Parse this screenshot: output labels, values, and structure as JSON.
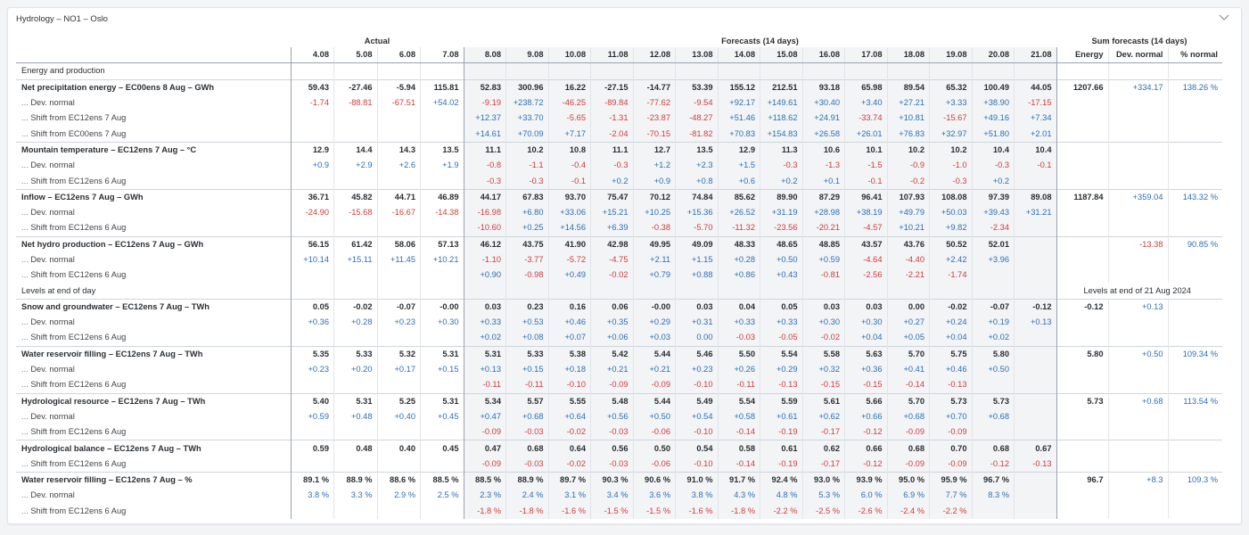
{
  "panel": {
    "title": "Hydrology – NO1 – Oslo"
  },
  "groups": {
    "actual": "Actual",
    "forecast": "Forecasts (14 days)",
    "sum": "Sum forecasts (14 days)"
  },
  "dates": [
    "4.08",
    "5.08",
    "6.08",
    "7.08",
    "8.08",
    "9.08",
    "10.08",
    "11.08",
    "12.08",
    "13.08",
    "14.08",
    "15.08",
    "16.08",
    "17.08",
    "18.08",
    "19.08",
    "20.08",
    "21.08"
  ],
  "sum_headers": [
    "Energy",
    "Dev. normal",
    "% normal"
  ],
  "levels_caption": "Levels at end of 21 Aug 2024",
  "rows": [
    {
      "type": "section",
      "label": "Energy and production"
    },
    {
      "type": "main",
      "label": "Net precipitation energy – EC00ens 8 Aug – GWh",
      "values": [
        "59.43",
        "-27.46",
        "-5.94",
        "115.81",
        "52.83",
        "300.96",
        "16.22",
        "-27.15",
        "-14.77",
        "53.39",
        "155.12",
        "212.51",
        "93.18",
        "65.98",
        "89.54",
        "65.32",
        "100.49",
        "44.05"
      ],
      "sums": [
        "1207.66",
        "+334.17",
        "138.26 %"
      ]
    },
    {
      "type": "sub",
      "label": "Dev. normal",
      "values": [
        "-1.74",
        "-88.81",
        "-67.51",
        "+54.02",
        "-9.19",
        "+238.72",
        "-46.25",
        "-89.84",
        "-77.62",
        "-9.54",
        "+92.17",
        "+149.61",
        "+30.40",
        "+3.40",
        "+27.21",
        "+3.33",
        "+38.90",
        "-17.15"
      ],
      "sums": [
        "",
        "",
        ""
      ]
    },
    {
      "type": "sub",
      "label": "Shift from EC12ens 7 Aug",
      "values": [
        "",
        "",
        "",
        "",
        "+12.37",
        "+33.70",
        "-5.65",
        "-1.31",
        "-23.87",
        "-48.27",
        "+51.46",
        "+118.62",
        "+24.91",
        "-33.74",
        "+10.81",
        "-15.67",
        "+49.16",
        "+7.34"
      ],
      "sums": [
        "",
        "",
        ""
      ]
    },
    {
      "type": "sub",
      "label": "Shift from EC00ens 7 Aug",
      "values": [
        "",
        "",
        "",
        "",
        "+14.61",
        "+70.09",
        "+7.17",
        "-2.04",
        "-70.15",
        "-81.82",
        "+70.83",
        "+154.83",
        "+26.58",
        "+26.01",
        "+76.83",
        "+32.97",
        "+51.80",
        "+2.01"
      ],
      "sums": [
        "",
        "",
        ""
      ]
    },
    {
      "type": "main",
      "label": "Mountain temperature – EC12ens 7 Aug – °C",
      "values": [
        "12.9",
        "14.4",
        "14.3",
        "13.5",
        "11.1",
        "10.2",
        "10.8",
        "11.1",
        "12.7",
        "13.5",
        "12.9",
        "11.3",
        "10.6",
        "10.1",
        "10.2",
        "10.2",
        "10.4",
        "10.4"
      ],
      "sums": [
        "",
        "",
        ""
      ]
    },
    {
      "type": "sub",
      "label": "Dev. normal",
      "values": [
        "+0.9",
        "+2.9",
        "+2.6",
        "+1.9",
        "-0.8",
        "-1.1",
        "-0.4",
        "-0.3",
        "+1.2",
        "+2.3",
        "+1.5",
        "-0.3",
        "-1.3",
        "-1.5",
        "-0.9",
        "-1.0",
        "-0.3",
        "-0.1"
      ],
      "sums": [
        "",
        "",
        ""
      ]
    },
    {
      "type": "sub",
      "label": "Shift from EC12ens 6 Aug",
      "values": [
        "",
        "",
        "",
        "",
        "-0.3",
        "-0.3",
        "-0.1",
        "+0.2",
        "+0.9",
        "+0.8",
        "+0.6",
        "+0.2",
        "+0.1",
        "-0.1",
        "-0.2",
        "-0.3",
        "+0.2",
        ""
      ],
      "sums": [
        "",
        "",
        ""
      ]
    },
    {
      "type": "main",
      "label": "Inflow – EC12ens 7 Aug – GWh",
      "values": [
        "36.71",
        "45.82",
        "44.71",
        "46.89",
        "44.17",
        "67.83",
        "93.70",
        "75.47",
        "70.12",
        "74.84",
        "85.62",
        "89.90",
        "87.29",
        "96.41",
        "107.93",
        "108.08",
        "97.39",
        "89.08"
      ],
      "sums": [
        "1187.84",
        "+359.04",
        "143.32 %"
      ]
    },
    {
      "type": "sub",
      "label": "Dev. normal",
      "values": [
        "-24.90",
        "-15.68",
        "-16.67",
        "-14.38",
        "-16.98",
        "+6.80",
        "+33.06",
        "+15.21",
        "+10.25",
        "+15.36",
        "+26.52",
        "+31.19",
        "+28.98",
        "+38.19",
        "+49.79",
        "+50.03",
        "+39.43",
        "+31.21"
      ],
      "sums": [
        "",
        "",
        ""
      ]
    },
    {
      "type": "sub",
      "label": "Shift from EC12ens 6 Aug",
      "values": [
        "",
        "",
        "",
        "",
        "-10.60",
        "+0.25",
        "+14.56",
        "+6.39",
        "-0.38",
        "-5.70",
        "-11.32",
        "-23.56",
        "-20.21",
        "-4.57",
        "+10.21",
        "+9.82",
        "-2.34",
        ""
      ],
      "sums": [
        "",
        "",
        ""
      ]
    },
    {
      "type": "main",
      "label": "Net hydro production – EC12ens 7 Aug – GWh",
      "values": [
        "56.15",
        "61.42",
        "58.06",
        "57.13",
        "46.12",
        "43.75",
        "41.90",
        "42.98",
        "49.95",
        "49.09",
        "48.33",
        "48.65",
        "48.85",
        "43.57",
        "43.76",
        "50.52",
        "52.01",
        ""
      ],
      "sums": [
        "",
        "-13.38",
        "90.85 %"
      ]
    },
    {
      "type": "sub",
      "label": "Dev. normal",
      "values": [
        "+10.14",
        "+15.11",
        "+11.45",
        "+10.21",
        "-1.10",
        "-3.77",
        "-5.72",
        "-4.75",
        "+2.11",
        "+1.15",
        "+0.28",
        "+0.50",
        "+0.59",
        "-4.64",
        "-4.40",
        "+2.42",
        "+3.96",
        ""
      ],
      "sums": [
        "",
        "",
        ""
      ]
    },
    {
      "type": "sub",
      "label": "Shift from EC12ens 6 Aug",
      "values": [
        "",
        "",
        "",
        "",
        "+0.90",
        "-0.98",
        "+0.49",
        "-0.02",
        "+0.79",
        "+0.88",
        "+0.86",
        "+0.43",
        "-0.81",
        "-2.56",
        "-2.21",
        "-1.74",
        "",
        ""
      ],
      "sums": [
        "",
        "",
        ""
      ]
    },
    {
      "type": "section",
      "label": "Levels at end of day",
      "levels": true
    },
    {
      "type": "main",
      "label": "Snow and groundwater – EC12ens 7 Aug – TWh",
      "values": [
        "0.05",
        "-0.02",
        "-0.07",
        "-0.00",
        "0.03",
        "0.23",
        "0.16",
        "0.06",
        "-0.00",
        "0.03",
        "0.04",
        "0.05",
        "0.03",
        "0.03",
        "0.00",
        "-0.02",
        "-0.07",
        "-0.12"
      ],
      "sums": [
        "-0.12",
        "+0.13",
        ""
      ]
    },
    {
      "type": "sub",
      "label": "Dev. normal",
      "values": [
        "+0.36",
        "+0.28",
        "+0.23",
        "+0.30",
        "+0.33",
        "+0.53",
        "+0.46",
        "+0.35",
        "+0.29",
        "+0.31",
        "+0.33",
        "+0.33",
        "+0.30",
        "+0.30",
        "+0.27",
        "+0.24",
        "+0.19",
        "+0.13"
      ],
      "sums": [
        "",
        "",
        ""
      ]
    },
    {
      "type": "sub",
      "label": "Shift from EC12ens 6 Aug",
      "values": [
        "",
        "",
        "",
        "",
        "+0.02",
        "+0.08",
        "+0.07",
        "+0.06",
        "+0.03",
        "0.00",
        "-0.03",
        "-0.05",
        "-0.02",
        "+0.04",
        "+0.05",
        "+0.04",
        "+0.02",
        ""
      ],
      "sums": [
        "",
        "",
        ""
      ]
    },
    {
      "type": "main",
      "label": "Water reservoir filling – EC12ens 7 Aug – TWh",
      "values": [
        "5.35",
        "5.33",
        "5.32",
        "5.31",
        "5.31",
        "5.33",
        "5.38",
        "5.42",
        "5.44",
        "5.46",
        "5.50",
        "5.54",
        "5.58",
        "5.63",
        "5.70",
        "5.75",
        "5.80",
        ""
      ],
      "sums": [
        "5.80",
        "+0.50",
        "109.34 %"
      ]
    },
    {
      "type": "sub",
      "label": "Dev. normal",
      "values": [
        "+0.23",
        "+0.20",
        "+0.17",
        "+0.15",
        "+0.13",
        "+0.15",
        "+0.18",
        "+0.21",
        "+0.21",
        "+0.23",
        "+0.26",
        "+0.29",
        "+0.32",
        "+0.36",
        "+0.41",
        "+0.46",
        "+0.50",
        ""
      ],
      "sums": [
        "",
        "",
        ""
      ]
    },
    {
      "type": "sub",
      "label": "Shift from EC12ens 6 Aug",
      "values": [
        "",
        "",
        "",
        "",
        "-0.11",
        "-0.11",
        "-0.10",
        "-0.09",
        "-0.09",
        "-0.10",
        "-0.11",
        "-0.13",
        "-0.15",
        "-0.15",
        "-0.14",
        "-0.13",
        "",
        ""
      ],
      "sums": [
        "",
        "",
        ""
      ]
    },
    {
      "type": "main",
      "label": "Hydrological resource – EC12ens 7 Aug – TWh",
      "values": [
        "5.40",
        "5.31",
        "5.25",
        "5.31",
        "5.34",
        "5.57",
        "5.55",
        "5.48",
        "5.44",
        "5.49",
        "5.54",
        "5.59",
        "5.61",
        "5.66",
        "5.70",
        "5.73",
        "5.73",
        ""
      ],
      "sums": [
        "5.73",
        "+0.68",
        "113.54 %"
      ]
    },
    {
      "type": "sub",
      "label": "Dev. normal",
      "values": [
        "+0.59",
        "+0.48",
        "+0.40",
        "+0.45",
        "+0.47",
        "+0.68",
        "+0.64",
        "+0.56",
        "+0.50",
        "+0.54",
        "+0.58",
        "+0.61",
        "+0.62",
        "+0.66",
        "+0.68",
        "+0.70",
        "+0.68",
        ""
      ],
      "sums": [
        "",
        "",
        ""
      ]
    },
    {
      "type": "sub",
      "label": "Shift from EC12ens 6 Aug",
      "values": [
        "",
        "",
        "",
        "",
        "-0.09",
        "-0.03",
        "-0.02",
        "-0.03",
        "-0.06",
        "-0.10",
        "-0.14",
        "-0.19",
        "-0.17",
        "-0.12",
        "-0.09",
        "-0.09",
        "",
        ""
      ],
      "sums": [
        "",
        "",
        ""
      ]
    },
    {
      "type": "main",
      "label": "Hydrological balance – EC12ens 7 Aug – TWh",
      "values": [
        "0.59",
        "0.48",
        "0.40",
        "0.45",
        "0.47",
        "0.68",
        "0.64",
        "0.56",
        "0.50",
        "0.54",
        "0.58",
        "0.61",
        "0.62",
        "0.66",
        "0.68",
        "0.70",
        "0.68",
        "0.67"
      ],
      "sums": [
        "",
        "",
        ""
      ]
    },
    {
      "type": "sub",
      "label": "Shift from EC12ens 6 Aug",
      "values": [
        "",
        "",
        "",
        "",
        "-0.09",
        "-0.03",
        "-0.02",
        "-0.03",
        "-0.06",
        "-0.10",
        "-0.14",
        "-0.19",
        "-0.17",
        "-0.12",
        "-0.09",
        "-0.09",
        "-0.12",
        "-0.13"
      ],
      "sums": [
        "",
        "",
        ""
      ]
    },
    {
      "type": "main",
      "label": "Water reservoir filling – EC12ens 7 Aug – %",
      "values": [
        "89.1 %",
        "88.9 %",
        "88.6 %",
        "88.5 %",
        "88.5 %",
        "88.9 %",
        "89.7 %",
        "90.3 %",
        "90.6 %",
        "91.0 %",
        "91.7 %",
        "92.4 %",
        "93.0 %",
        "93.9 %",
        "95.0 %",
        "95.9 %",
        "96.7 %",
        ""
      ],
      "sums": [
        "96.7",
        "+8.3",
        "109.3 %"
      ]
    },
    {
      "type": "sub",
      "label": "Dev. normal",
      "values": [
        "3.8 %",
        "3.3 %",
        "2.9 %",
        "2.5 %",
        "2.3 %",
        "2.4 %",
        "3.1 %",
        "3.4 %",
        "3.6 %",
        "3.8 %",
        "4.3 %",
        "4.8 %",
        "5.3 %",
        "6.0 %",
        "6.9 %",
        "7.7 %",
        "8.3 %",
        ""
      ],
      "sums": [
        "",
        "",
        ""
      ]
    },
    {
      "type": "sub",
      "label": "Shift from EC12ens 6 Aug",
      "values": [
        "",
        "",
        "",
        "",
        "-1.8 %",
        "-1.8 %",
        "-1.6 %",
        "-1.5 %",
        "-1.5 %",
        "-1.6 %",
        "-1.8 %",
        "-2.2 %",
        "-2.5 %",
        "-2.6 %",
        "-2.4 %",
        "-2.2 %",
        "",
        ""
      ],
      "sums": [
        "",
        "",
        ""
      ]
    }
  ],
  "colors": {
    "positive": "#2c6fb7",
    "negative": "#d23b3b",
    "forecast_bg": "#f2f4f6"
  },
  "icons": {
    "collapse": "chevron-down-icon"
  }
}
